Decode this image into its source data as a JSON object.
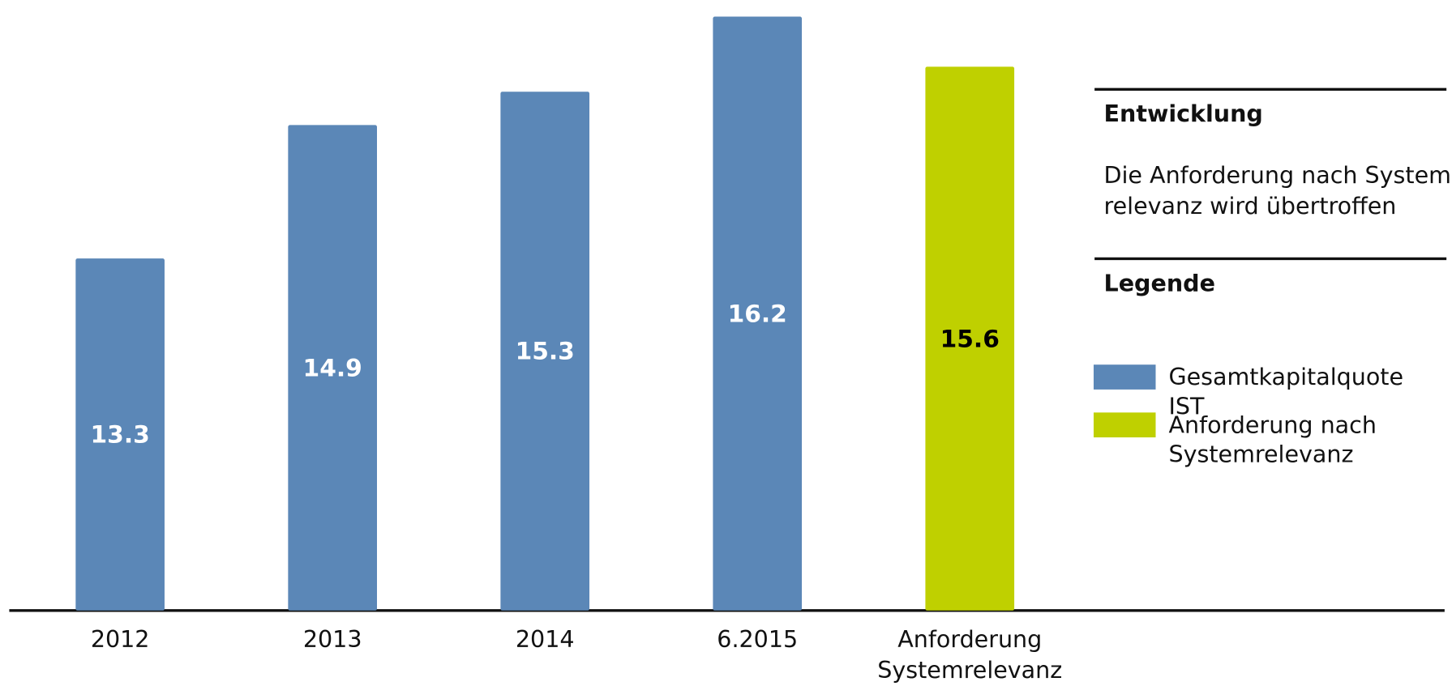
{
  "chart_data": {
    "type": "bar",
    "categories": [
      "2012",
      "2013",
      "2014",
      "6.2015",
      "Anforderung Systemrelevanz"
    ],
    "series": [
      {
        "name": "Gesamtkapitalquote IST",
        "color": "#5b87b7",
        "label_color": "#ffffff",
        "values": [
          13.3,
          14.9,
          15.3,
          16.2,
          null
        ]
      },
      {
        "name": "Anforderung nach Systemrelevanz",
        "color": "#bfd000",
        "label_color": "#000000",
        "values": [
          null,
          null,
          null,
          null,
          15.6
        ]
      }
    ],
    "ylim": [
      9.08,
      16.3
    ],
    "panel": {
      "heading": "Entwicklung",
      "text_lines": [
        "Die Anforderung nach System-",
        "relevanz wird übertroffen"
      ],
      "legend_heading": "Legende"
    }
  }
}
